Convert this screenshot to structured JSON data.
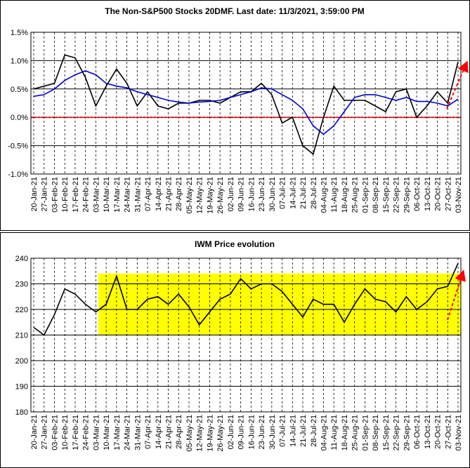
{
  "chart_data": [
    {
      "type": "line",
      "title": "The Non-S&P500 Stocks 20DMF. Last date: 11/3/2021, 3:59:00 PM",
      "categories": [
        "20-Jan-21",
        "27-Jan-21",
        "03-Feb-21",
        "10-Feb-21",
        "17-Feb-21",
        "24-Feb-21",
        "03-Mar-21",
        "10-Mar-21",
        "17-Mar-21",
        "24-Mar-21",
        "31-Mar-21",
        "07-Apr-21",
        "14-Apr-21",
        "21-Apr-21",
        "28-Apr-21",
        "05-May-21",
        "12-May-21",
        "19-May-21",
        "26-May-21",
        "02-Jun-21",
        "09-Jun-21",
        "16-Jun-21",
        "23-Jun-21",
        "30-Jun-21",
        "07-Jul-21",
        "14-Jul-21",
        "21-Jul-21",
        "28-Jul-21",
        "04-Aug-21",
        "11-Aug-21",
        "18-Aug-21",
        "25-Aug-21",
        "01-Sep-21",
        "08-Sep-21",
        "15-Sep-21",
        "22-Sep-21",
        "29-Sep-21",
        "06-Oct-21",
        "13-Oct-21",
        "20-Oct-21",
        "27-Oct-21",
        "03-Nov-21"
      ],
      "series": [
        {
          "color": "#000000",
          "values": [
            0.5,
            0.55,
            0.6,
            1.1,
            1.05,
            0.7,
            0.2,
            0.55,
            0.85,
            0.6,
            0.2,
            0.45,
            0.2,
            0.15,
            0.25,
            0.25,
            0.3,
            0.3,
            0.25,
            0.35,
            0.45,
            0.45,
            0.6,
            0.4,
            -0.1,
            0.0,
            -0.5,
            -0.65,
            0.0,
            0.55,
            0.3,
            0.3,
            0.3,
            0.2,
            0.1,
            0.45,
            0.5,
            0.0,
            0.2,
            0.45,
            0.25,
            0.98
          ]
        },
        {
          "color": "#0000cc",
          "values": [
            0.37,
            0.4,
            0.5,
            0.65,
            0.75,
            0.82,
            0.75,
            0.6,
            0.55,
            0.52,
            0.45,
            0.4,
            0.35,
            0.3,
            0.27,
            0.25,
            0.27,
            0.28,
            0.3,
            0.35,
            0.4,
            0.45,
            0.52,
            0.5,
            0.4,
            0.3,
            0.15,
            -0.15,
            -0.3,
            -0.15,
            0.1,
            0.35,
            0.4,
            0.4,
            0.35,
            0.3,
            0.35,
            0.28,
            0.28,
            0.25,
            0.2,
            0.32
          ]
        }
      ],
      "ylim": [
        -1.0,
        1.5
      ],
      "yticks": [
        {
          "value": -1.0,
          "label": "-1.0%"
        },
        {
          "value": -0.5,
          "label": "-0.5%"
        },
        {
          "value": 0,
          "label": "0.0%"
        },
        {
          "value": 0.5,
          "label": "0.5%"
        },
        {
          "value": 1.0,
          "label": "1.0%"
        },
        {
          "value": 1.5,
          "label": "1.5%"
        }
      ],
      "grid": true
    },
    {
      "type": "line",
      "title": "IWM Price evolution",
      "categories": [
        "20-Jan-21",
        "27-Jan-21",
        "03-Feb-21",
        "10-Feb-21",
        "17-Feb-21",
        "24-Feb-21",
        "03-Mar-21",
        "10-Mar-21",
        "17-Mar-21",
        "24-Mar-21",
        "31-Mar-21",
        "07-Apr-21",
        "14-Apr-21",
        "21-Apr-21",
        "28-Apr-21",
        "05-May-21",
        "12-May-21",
        "19-May-21",
        "26-May-21",
        "02-Jun-21",
        "09-Jun-21",
        "16-Jun-21",
        "23-Jun-21",
        "30-Jun-21",
        "07-Jul-21",
        "14-Jul-21",
        "21-Jul-21",
        "28-Jul-21",
        "04-Aug-21",
        "11-Aug-21",
        "18-Aug-21",
        "25-Aug-21",
        "01-Sep-21",
        "08-Sep-21",
        "15-Sep-21",
        "22-Sep-21",
        "29-Sep-21",
        "06-Oct-21",
        "13-Oct-21",
        "20-Oct-21",
        "27-Oct-21",
        "03-Nov-21"
      ],
      "series": [
        {
          "color": "#000000",
          "values": [
            213,
            210,
            218,
            228,
            226,
            222,
            219,
            222,
            233,
            220,
            220,
            224,
            225,
            222,
            226,
            221,
            214,
            219,
            224,
            226,
            232,
            228,
            230,
            230,
            227,
            222,
            217,
            224,
            222,
            222,
            215,
            222,
            228,
            224,
            223,
            219,
            225,
            220,
            223,
            228,
            229,
            238
          ]
        }
      ],
      "band": [
        210,
        234
      ],
      "band_color": "#ffff00",
      "ylim": [
        180,
        240
      ],
      "yticks": [
        180,
        190,
        200,
        210,
        220,
        230,
        240
      ],
      "grid": true
    }
  ]
}
